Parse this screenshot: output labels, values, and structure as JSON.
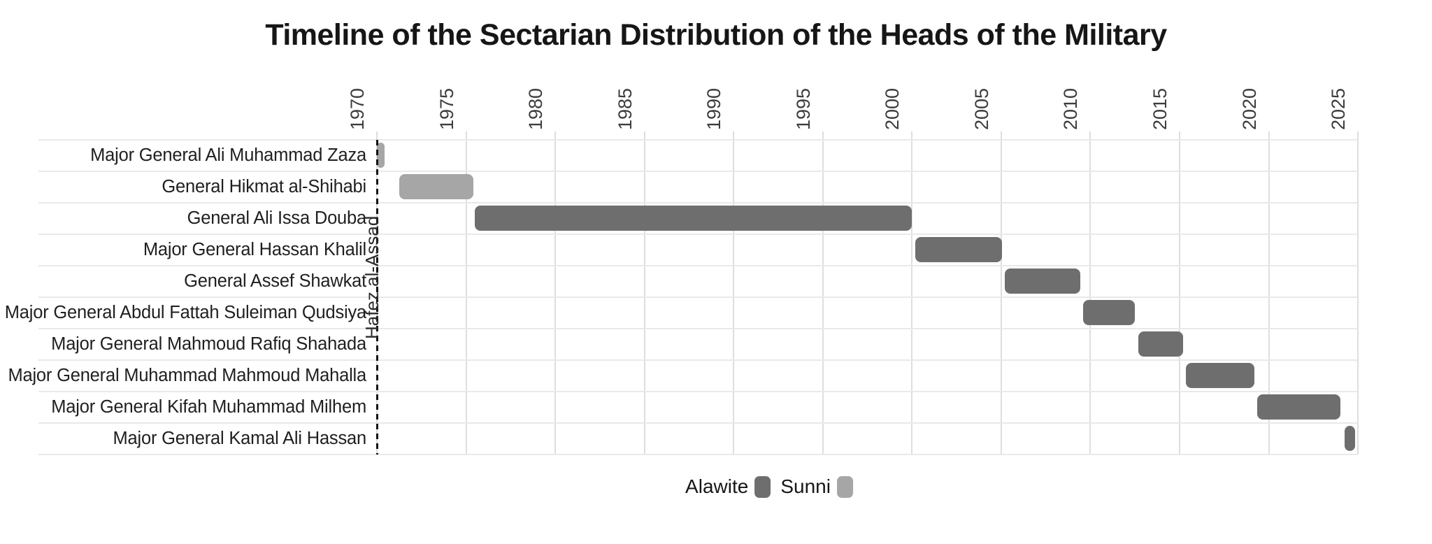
{
  "title": "Timeline of the Sectarian Distribution of the Heads of the Military",
  "colors": {
    "alawite": "#6e6e6e",
    "sunni": "#a6a6a6",
    "gridline": "#dedede",
    "row_line": "#e9e9e9",
    "era_line": "#131313",
    "text": "#1a1a1a",
    "axis_text": "#3d3d3d"
  },
  "legend": {
    "items": [
      {
        "label": "Alawite",
        "color": "#6e6e6e"
      },
      {
        "label": "Sunni",
        "color": "#a6a6a6"
      }
    ]
  },
  "chart_data": {
    "type": "bar",
    "orientation": "horizontal-timeline",
    "title": "Timeline of the Sectarian Distribution of the Heads of the Military",
    "xlabel": "",
    "ylabel": "",
    "x_range": [
      1969.9,
      2025.2
    ],
    "x_ticks": [
      1970,
      1975,
      1980,
      1985,
      1990,
      1995,
      2000,
      2005,
      2010,
      2015,
      2020,
      2025
    ],
    "grid": "on",
    "legend_position": "bottom-center",
    "annotation": {
      "label": "Hafez al-Assad",
      "year": 1970,
      "style": "dashed-vertical-line"
    },
    "rows": [
      {
        "label": "Major General Ali Muhammad Zaza",
        "sect": "Sunni",
        "start": 1970.0,
        "end": 1970.45
      },
      {
        "label": "General Hikmat al-Shihabi",
        "sect": "Sunni",
        "start": 1971.25,
        "end": 1975.4
      },
      {
        "label": "General Ali Issa Douba",
        "sect": "Alawite",
        "start": 1975.5,
        "end": 2000.0
      },
      {
        "label": "Major General Hassan Khalil",
        "sect": "Alawite",
        "start": 2000.2,
        "end": 2005.05
      },
      {
        "label": "General Assef Shawkat",
        "sect": "Alawite",
        "start": 2005.2,
        "end": 2009.45
      },
      {
        "label": "Major General Abdul Fattah Suleiman Qudsiya",
        "sect": "Alawite",
        "start": 2009.6,
        "end": 2012.5
      },
      {
        "label": "Major General Mahmoud Rafiq Shahada",
        "sect": "Alawite",
        "start": 2012.7,
        "end": 2015.2
      },
      {
        "label": "Major General Muhammad Mahmoud Mahalla",
        "sect": "Alawite",
        "start": 2015.35,
        "end": 2019.2
      },
      {
        "label": "Major General Kifah Muhammad Milhem",
        "sect": "Alawite",
        "start": 2019.35,
        "end": 2024.0
      },
      {
        "label": "Major General Kamal Ali Hassan",
        "sect": "Alawite",
        "start": 2024.25,
        "end": 2024.85
      }
    ]
  }
}
